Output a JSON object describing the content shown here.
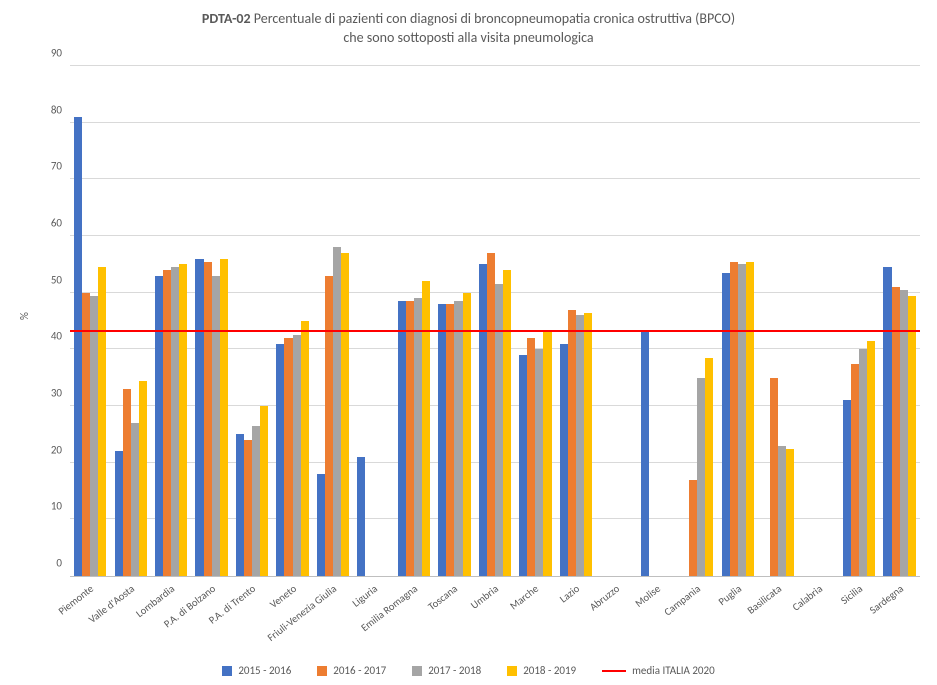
{
  "chart": {
    "type": "bar",
    "title_prefix_bold": "PDTA-02",
    "title_line1_rest": " Percentuale di pazienti con diagnosi di broncopneumopatia cronica ostruttiva (BPCO)",
    "title_line2": "che sono sottoposti alla visita pneumologica",
    "title_fontsize": 14,
    "y_axis_title": "%",
    "label_fontsize": 11,
    "ylim": [
      0,
      90
    ],
    "ytick_step": 10,
    "yticks": [
      0,
      10,
      20,
      30,
      40,
      50,
      60,
      70,
      80,
      90
    ],
    "background_color": "#ffffff",
    "grid_color": "#d9d9d9",
    "axis_color": "#bfbfbf",
    "text_color": "#595959",
    "bar_group_width": 0.8,
    "series": [
      {
        "name": "2015 - 2016",
        "color": "#4472c4"
      },
      {
        "name": "2016 - 2017",
        "color": "#ed7d31"
      },
      {
        "name": "2017 - 2018",
        "color": "#a5a5a5"
      },
      {
        "name": "2018 - 2019",
        "color": "#ffc000"
      }
    ],
    "reference_line": {
      "name": "media ITALIA 2020",
      "value": 43,
      "color": "#ff0000",
      "line_width": 2
    },
    "categories": [
      "Piemonte",
      "Valle d'Aosta",
      "Lombardia",
      "P.A. di Bolzano",
      "P.A. di Trento",
      "Veneto",
      "Friuli-Venezia Giulia",
      "Liguria",
      "Emilia Romagna",
      "Toscana",
      "Umbria",
      "Marche",
      "Lazio",
      "Abruzzo",
      "Molise",
      "Campania",
      "Puglia",
      "Basilicata",
      "Calabria",
      "Sicilia",
      "Sardegna"
    ],
    "values": {
      "2015 - 2016": [
        81,
        22,
        53,
        56,
        25,
        41,
        18,
        21,
        48.5,
        48,
        55,
        39,
        41,
        null,
        43.5,
        null,
        53.5,
        null,
        null,
        31,
        54.5
      ],
      "2016 - 2017": [
        50,
        33,
        54,
        55.5,
        24,
        42,
        53,
        null,
        48.5,
        48,
        57,
        42,
        47,
        null,
        null,
        17,
        55.5,
        35,
        null,
        37.5,
        51
      ],
      "2017 - 2018": [
        49.5,
        27,
        54.5,
        53,
        26.5,
        42.5,
        58,
        null,
        49,
        48.5,
        51.5,
        40,
        46,
        null,
        null,
        35,
        55,
        23,
        null,
        40,
        50.5
      ],
      "2018 - 2019": [
        54.5,
        34.5,
        55,
        56,
        30,
        45,
        57,
        null,
        52,
        50,
        54,
        43,
        46.5,
        null,
        null,
        38.5,
        55.5,
        22.5,
        null,
        41.5,
        49.5
      ]
    },
    "legend_position": "bottom"
  }
}
